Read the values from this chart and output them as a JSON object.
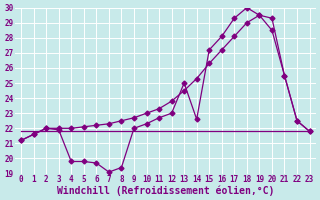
{
  "xlabel": "Windchill (Refroidissement éolien,°C)",
  "bg_color": "#c8eaea",
  "line_color": "#800080",
  "grid_color": "#ffffff",
  "xlim": [
    -0.5,
    23.5
  ],
  "ylim": [
    19,
    30
  ],
  "yticks": [
    19,
    20,
    21,
    22,
    23,
    24,
    25,
    26,
    27,
    28,
    29,
    30
  ],
  "xticks": [
    0,
    1,
    2,
    3,
    4,
    5,
    6,
    7,
    8,
    9,
    10,
    11,
    12,
    13,
    14,
    15,
    16,
    17,
    18,
    19,
    20,
    21,
    22,
    23
  ],
  "line1_x": [
    0,
    1,
    2,
    3,
    4,
    5,
    6,
    7,
    8,
    9,
    10,
    11,
    12,
    13,
    14,
    15,
    16,
    17,
    18,
    19,
    20,
    21,
    22,
    23
  ],
  "line1_y": [
    21.2,
    21.6,
    22.0,
    21.9,
    19.8,
    19.8,
    19.7,
    19.1,
    19.4,
    22.0,
    22.3,
    22.7,
    23.0,
    25.0,
    22.6,
    27.2,
    28.1,
    29.3,
    30.0,
    29.5,
    28.5,
    25.5,
    22.5,
    21.8
  ],
  "line2_x": [
    0,
    1,
    2,
    3,
    4,
    5,
    6,
    7,
    8,
    9,
    10,
    11,
    12,
    13,
    14,
    15,
    16,
    17,
    18,
    19,
    20,
    21,
    22,
    23
  ],
  "line2_y": [
    21.2,
    21.6,
    22.0,
    22.0,
    22.0,
    22.1,
    22.2,
    22.3,
    22.5,
    22.7,
    23.0,
    23.3,
    23.8,
    24.5,
    25.3,
    26.3,
    27.2,
    28.1,
    29.0,
    29.5,
    29.3,
    25.5,
    22.5,
    21.8
  ],
  "line3_x": [
    0,
    23
  ],
  "line3_y": [
    21.8,
    21.8
  ],
  "marker": "D",
  "markersize": 2.5,
  "linewidth": 0.9,
  "xlabel_fontsize": 7,
  "tick_fontsize": 5.5
}
